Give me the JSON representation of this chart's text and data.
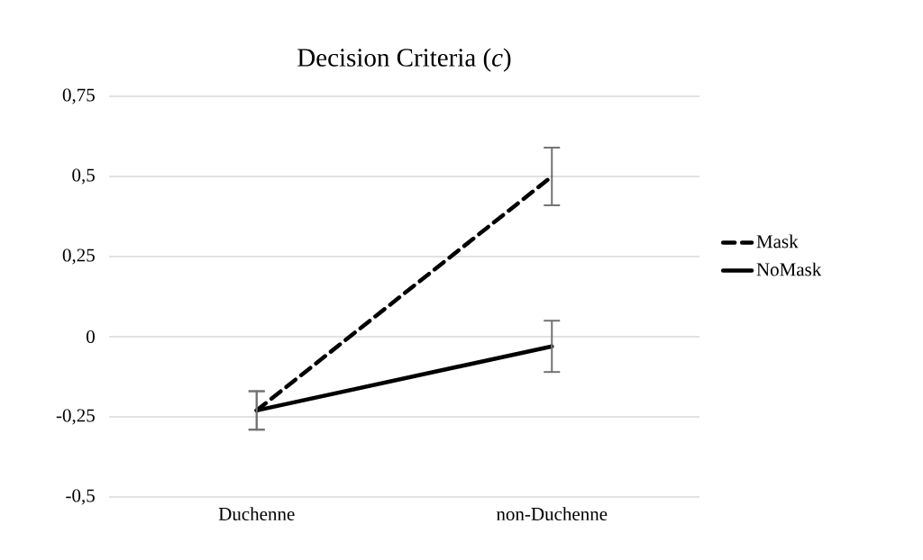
{
  "chart_data": {
    "type": "line",
    "title": "Decision Criteria (*c*)",
    "categories": [
      "Duchenne",
      "non-Duchenne"
    ],
    "series": [
      {
        "name": "Mask",
        "color": "#000000",
        "line_style": "dashed",
        "values": [
          -0.23,
          0.5
        ],
        "errors": [
          0.06,
          0.09
        ]
      },
      {
        "name": "NoMask",
        "color": "#000000",
        "line_style": "solid",
        "values": [
          -0.23,
          -0.03
        ],
        "errors": [
          0.06,
          0.08
        ]
      }
    ],
    "ylim": [
      -0.5,
      0.75
    ],
    "yticks": [
      {
        "value": -0.5,
        "label": "-0,5"
      },
      {
        "value": -0.25,
        "label": "-0,25"
      },
      0,
      {
        "value": 0.25,
        "label": "0,25"
      },
      {
        "value": 0.5,
        "label": "0,5"
      },
      {
        "value": 0.75,
        "label": "0,75"
      }
    ],
    "grid": "y",
    "legend": "right",
    "marker": "none"
  }
}
